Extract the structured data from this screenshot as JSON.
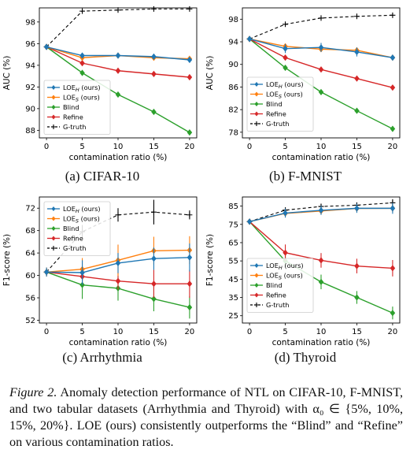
{
  "chart_data": [
    {
      "id": "a",
      "type": "line",
      "title": "(a) CIFAR-10",
      "xlabel": "contamination ratio (%)",
      "ylabel": "AUC (%)",
      "x": [
        0,
        5,
        10,
        15,
        20
      ],
      "xticks": [
        "0",
        "5",
        "10",
        "15",
        "20"
      ],
      "ylim": [
        87.3,
        99.3
      ],
      "yticks": [
        88,
        90,
        92,
        94,
        96,
        98
      ],
      "legend": "center-left",
      "series": [
        {
          "name": "LOE_H (ours)",
          "color": "#1f77b4",
          "marker": "diamond",
          "values": [
            95.7,
            94.9,
            94.9,
            94.8,
            94.5
          ]
        },
        {
          "name": "LOE_S (ours)",
          "color": "#ff7f0e",
          "marker": "diamond",
          "values": [
            95.7,
            94.7,
            94.9,
            94.7,
            94.6
          ]
        },
        {
          "name": "Blind",
          "color": "#2ca02c",
          "marker": "diamond",
          "values": [
            95.7,
            93.3,
            91.3,
            89.7,
            87.8
          ]
        },
        {
          "name": "Refine",
          "color": "#d62728",
          "marker": "diamond",
          "values": [
            95.7,
            94.2,
            93.5,
            93.2,
            92.9
          ]
        },
        {
          "name": "G-truth",
          "color": "#000000",
          "marker": "plus",
          "dashed": true,
          "values": [
            95.7,
            99.0,
            99.1,
            99.2,
            99.2
          ]
        }
      ]
    },
    {
      "id": "b",
      "type": "line",
      "title": "(b) F-MNIST",
      "xlabel": "contamination ratio (%)",
      "ylabel": "AUC (%)",
      "x": [
        0,
        5,
        10,
        15,
        20
      ],
      "xticks": [
        "0",
        "5",
        "10",
        "15",
        "20"
      ],
      "ylim": [
        77,
        100
      ],
      "yticks": [
        78,
        86,
        94,
        98
      ],
      "ytick_labels_extra": [
        82,
        90
      ],
      "legend": "center-left",
      "series": [
        {
          "name": "LOE_H (ours)",
          "color": "#1f77b4",
          "marker": "diamond",
          "values": [
            94.5,
            92.8,
            93.0,
            92.2,
            91.2
          ],
          "err": [
            0,
            0.8,
            0.8,
            0.8,
            0
          ]
        },
        {
          "name": "LOE_S (ours)",
          "color": "#ff7f0e",
          "marker": "diamond",
          "values": [
            94.5,
            93.2,
            92.7,
            92.5,
            91.2
          ]
        },
        {
          "name": "Blind",
          "color": "#2ca02c",
          "marker": "diamond",
          "values": [
            94.5,
            89.4,
            85.1,
            81.8,
            78.6
          ]
        },
        {
          "name": "Refine",
          "color": "#d62728",
          "marker": "diamond",
          "values": [
            94.5,
            91.2,
            89.1,
            87.5,
            85.9
          ]
        },
        {
          "name": "G-truth",
          "color": "#000000",
          "marker": "plus",
          "dashed": true,
          "values": [
            94.5,
            97.1,
            98.2,
            98.5,
            98.7
          ]
        }
      ]
    },
    {
      "id": "c",
      "type": "line",
      "title": "(c) Arrhythmia",
      "xlabel": "contamination ratio (%)",
      "ylabel": "F1-score (%)",
      "x": [
        0,
        5,
        10,
        15,
        20
      ],
      "xticks": [
        "0",
        "5",
        "10",
        "15",
        "20"
      ],
      "ylim": [
        51.5,
        74
      ],
      "yticks": [
        52,
        56,
        60,
        64,
        68,
        72
      ],
      "legend": "top-left",
      "series": [
        {
          "name": "LOE_H (ours)",
          "color": "#1f77b4",
          "marker": "diamond",
          "values": [
            60.6,
            60.5,
            62.2,
            63.0,
            63.2
          ],
          "err": [
            0.8,
            2.2,
            1.8,
            2.0,
            2.5
          ]
        },
        {
          "name": "LOE_S (ours)",
          "color": "#ff7f0e",
          "marker": "diamond",
          "values": [
            60.6,
            61.1,
            62.7,
            64.4,
            64.5
          ],
          "err": [
            0.8,
            2.0,
            2.8,
            2.5,
            2.5
          ]
        },
        {
          "name": "Blind",
          "color": "#2ca02c",
          "marker": "diamond",
          "values": [
            60.6,
            58.3,
            57.7,
            55.8,
            54.3
          ],
          "err": [
            0.8,
            2.5,
            2.2,
            2.2,
            2.0
          ]
        },
        {
          "name": "Refine",
          "color": "#d62728",
          "marker": "diamond",
          "values": [
            60.6,
            59.8,
            59.0,
            58.5,
            58.5
          ],
          "err": [
            0.8,
            1.5,
            1.5,
            2.5,
            2.5
          ]
        },
        {
          "name": "G-truth",
          "color": "#000000",
          "marker": "plus",
          "dashed": true,
          "values": [
            60.6,
            67.8,
            70.8,
            71.3,
            70.8
          ],
          "err": [
            0,
            1.2,
            1.2,
            2.2,
            0.8
          ]
        }
      ]
    },
    {
      "id": "d",
      "type": "line",
      "title": "(d) Thyroid",
      "xlabel": "contamination ratio (%)",
      "ylabel": "F1-score (%)",
      "x": [
        0,
        5,
        10,
        15,
        20
      ],
      "xticks": [
        "0",
        "5",
        "10",
        "15",
        "20"
      ],
      "ylim": [
        21,
        90
      ],
      "yticks": [
        25,
        35,
        45,
        55,
        65,
        75,
        85
      ],
      "legend": "center-left",
      "series": [
        {
          "name": "LOE_H (ours)",
          "color": "#1f77b4",
          "marker": "diamond",
          "values": [
            76.5,
            81.2,
            82.7,
            83.8,
            83.8
          ],
          "err": [
            1.5,
            2.5,
            2.5,
            2.5,
            3.0
          ]
        },
        {
          "name": "LOE_S (ours)",
          "color": "#ff7f0e",
          "marker": "diamond",
          "values": [
            76.5,
            81.0,
            82.3,
            83.7,
            83.8
          ],
          "err": [
            1.5,
            2.0,
            2.0,
            2.0,
            2.0
          ]
        },
        {
          "name": "Blind",
          "color": "#2ca02c",
          "marker": "diamond",
          "values": [
            76.5,
            55.0,
            43.5,
            35.0,
            26.5
          ],
          "err": [
            1.5,
            3.5,
            4.0,
            3.5,
            3.5
          ]
        },
        {
          "name": "Refine",
          "color": "#d62728",
          "marker": "diamond",
          "values": [
            76.5,
            59.5,
            55.3,
            52.2,
            51.0
          ],
          "err": [
            1.5,
            4.5,
            4.0,
            4.0,
            4.5
          ]
        },
        {
          "name": "G-truth",
          "color": "#000000",
          "marker": "plus",
          "dashed": true,
          "values": [
            76.5,
            82.8,
            84.8,
            85.5,
            86.8
          ],
          "err": [
            0,
            1.5,
            1.5,
            1.5,
            2.0
          ]
        }
      ]
    }
  ],
  "caption": {
    "label": "Figure 2.",
    "text": " Anomaly detection performance of NTL on CIFAR-10, F-MNIST, and two tabular datasets (Arrhythmia and Thyroid) with α₀ ∈ {5%, 10%, 15%, 20%}. LOE (ours) consistently outperforms the “Blind” and “Refine” on various contamination ratios."
  }
}
